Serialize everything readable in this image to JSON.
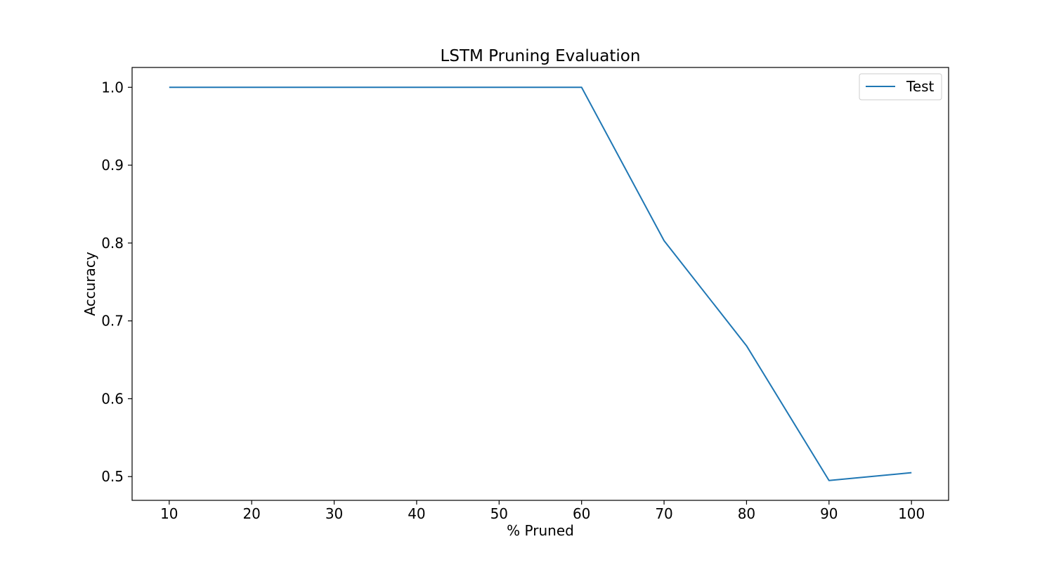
{
  "chart_data": {
    "type": "line",
    "title": "LSTM Pruning Evaluation",
    "xlabel": "% Pruned",
    "ylabel": "Accuracy",
    "x": [
      10,
      20,
      30,
      40,
      50,
      60,
      70,
      80,
      90,
      100
    ],
    "series": [
      {
        "name": "Test",
        "color": "#1f77b4",
        "values": [
          1.0,
          1.0,
          1.0,
          1.0,
          1.0,
          1.0,
          0.803,
          0.668,
          0.495,
          0.505
        ]
      }
    ],
    "xlim": [
      5.5,
      104.5
    ],
    "ylim": [
      0.4695,
      1.0255
    ],
    "xticks": [
      10,
      20,
      30,
      40,
      50,
      60,
      70,
      80,
      90,
      100
    ],
    "xtick_labels": [
      "10",
      "20",
      "30",
      "40",
      "50",
      "60",
      "70",
      "80",
      "90",
      "100"
    ],
    "yticks": [
      0.5,
      0.6,
      0.7,
      0.8,
      0.9,
      1.0
    ],
    "ytick_labels": [
      "0.5",
      "0.6",
      "0.7",
      "0.8",
      "0.9",
      "1.0"
    ],
    "grid": false,
    "legend_position": "upper right"
  }
}
